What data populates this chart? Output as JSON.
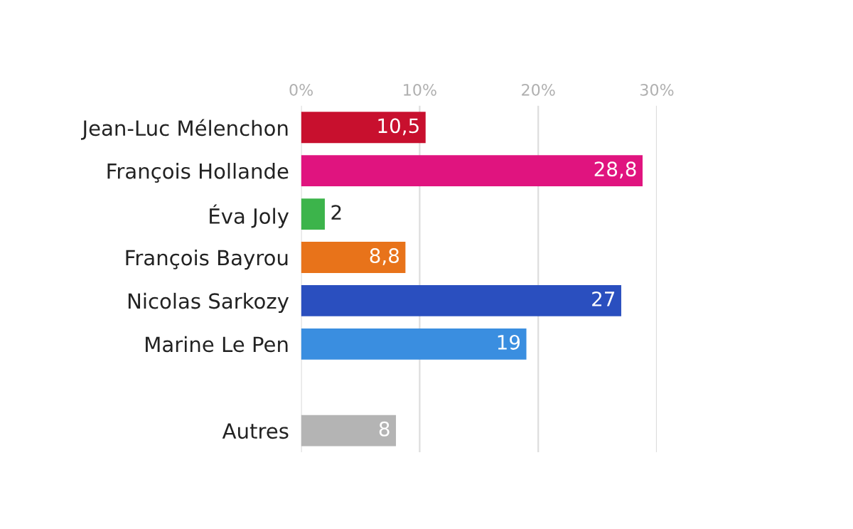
{
  "chart_data": {
    "type": "bar",
    "orientation": "horizontal",
    "categories": [
      "Jean-Luc Mélenchon",
      "François Hollande",
      "Éva Joly",
      "François Bayrou",
      "Nicolas Sarkozy",
      "Marine Le Pen",
      null,
      "Autres"
    ],
    "values": [
      10.5,
      28.8,
      2,
      8.8,
      27,
      19,
      null,
      8
    ],
    "colors": [
      "#c8102e",
      "#e0147f",
      "#3cb44b",
      "#e8731a",
      "#2a4fbf",
      "#3a8ee0",
      "#ffffff",
      "#b4b4b4"
    ],
    "value_labels": [
      "10,5",
      "28,8",
      "2",
      "8,8",
      "27",
      "19",
      null,
      "8"
    ],
    "xlim": [
      0,
      30
    ],
    "xticks": [
      {
        "value": 0,
        "label": "0%"
      },
      {
        "value": 10,
        "label": "10%"
      },
      {
        "value": 20,
        "label": "20%"
      },
      {
        "value": 30,
        "label": "30%"
      }
    ],
    "grid": "x"
  }
}
